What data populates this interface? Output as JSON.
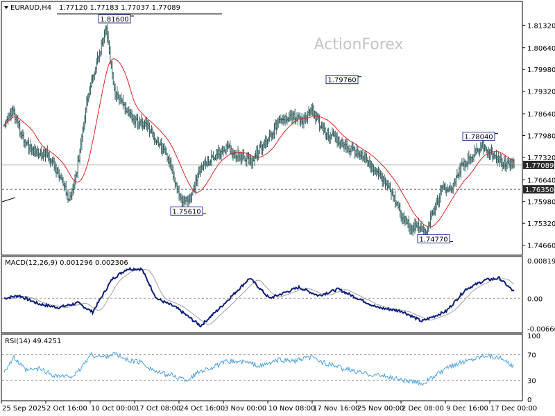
{
  "header": {
    "symbol": "EURAUD,H4",
    "ohlc": "1.77120 1.77183 1.77037 1.77089"
  },
  "watermark": "ActionForex",
  "colors": {
    "price": "#2f5b5b",
    "ma": "#dd2222",
    "macd": "#0a1a7a",
    "signal": "#a0a0a0",
    "rsi": "#4aa0e0",
    "grid": "#c8c8c8",
    "label_bg": "#2b2b2b",
    "axis": "#000000"
  },
  "chart_data": [
    {
      "type": "bar",
      "panel": "price",
      "ylim": [
        1.744,
        1.82
      ],
      "y_ticks": [
        "1.81320",
        "1.80640",
        "1.79980",
        "1.79320",
        "1.78640",
        "1.77980",
        "1.77320",
        "1.76640",
        "1.75980",
        "1.75320",
        "1.74660"
      ],
      "x_ticks": [
        "25 Sep 2025",
        "2 Oct 16:00",
        "10 Oct 00:00",
        "17 Oct 08:00",
        "24 Oct 16:00",
        "3 Nov 00:00",
        "10 Nov 08:00",
        "17 Nov 16:00",
        "25 Nov 00:00",
        "2 Dec 08:00",
        "9 Dec 16:00",
        "17 Dec 00:00"
      ],
      "current_price": "1.77089",
      "line_level": "1.76350",
      "annotations": [
        {
          "label": "1.81600",
          "value": 1.816
        },
        {
          "label": "1.75610",
          "value": 1.7561
        },
        {
          "label": "1.79760",
          "value": 1.7976
        },
        {
          "label": "1.74770",
          "value": 1.7477
        },
        {
          "label": "1.78040",
          "value": 1.7804
        }
      ],
      "close_anchors": [
        [
          0,
          1.782
        ],
        [
          8,
          1.7875
        ],
        [
          18,
          1.7795
        ],
        [
          30,
          1.775
        ],
        [
          45,
          1.774
        ],
        [
          58,
          1.7665
        ],
        [
          66,
          1.76
        ],
        [
          74,
          1.769
        ],
        [
          84,
          1.79
        ],
        [
          95,
          1.803
        ],
        [
          104,
          1.812
        ],
        [
          112,
          1.793
        ],
        [
          124,
          1.788
        ],
        [
          134,
          1.784
        ],
        [
          145,
          1.783
        ],
        [
          158,
          1.777
        ],
        [
          168,
          1.772
        ],
        [
          180,
          1.76
        ],
        [
          190,
          1.761
        ],
        [
          200,
          1.77
        ],
        [
          212,
          1.773
        ],
        [
          226,
          1.776
        ],
        [
          238,
          1.774
        ],
        [
          252,
          1.772
        ],
        [
          266,
          1.778
        ],
        [
          280,
          1.784
        ],
        [
          292,
          1.786
        ],
        [
          304,
          1.784
        ],
        [
          314,
          1.788
        ],
        [
          322,
          1.782
        ],
        [
          336,
          1.779
        ],
        [
          350,
          1.776
        ],
        [
          364,
          1.774
        ],
        [
          378,
          1.769
        ],
        [
          392,
          1.764
        ],
        [
          404,
          1.756
        ],
        [
          414,
          1.752
        ],
        [
          422,
          1.753
        ],
        [
          428,
          1.75
        ],
        [
          436,
          1.756
        ],
        [
          446,
          1.764
        ],
        [
          456,
          1.764
        ],
        [
          466,
          1.771
        ],
        [
          476,
          1.773
        ],
        [
          486,
          1.777
        ],
        [
          496,
          1.774
        ],
        [
          508,
          1.7715
        ],
        [
          518,
          1.7709
        ]
      ]
    },
    {
      "type": "line",
      "panel": "macd",
      "title": "MACD(12,26,9) 0.001296 0.002306",
      "ylim": [
        -0.0072,
        0.0088
      ],
      "y_ticks": [
        "0.008194",
        "0.00",
        "-0.006604"
      ],
      "macd_anchors": [
        [
          0,
          0.0
        ],
        [
          15,
          0.0006
        ],
        [
          35,
          -0.0012
        ],
        [
          55,
          -0.002
        ],
        [
          75,
          -0.001
        ],
        [
          90,
          -0.003
        ],
        [
          110,
          0.0042
        ],
        [
          125,
          0.0064
        ],
        [
          140,
          0.0064
        ],
        [
          155,
          0.0
        ],
        [
          175,
          -0.002
        ],
        [
          200,
          -0.006
        ],
        [
          220,
          -0.002
        ],
        [
          250,
          0.0044
        ],
        [
          270,
          0.0
        ],
        [
          300,
          0.0024
        ],
        [
          320,
          0.0006
        ],
        [
          340,
          0.002
        ],
        [
          360,
          0.0
        ],
        [
          380,
          -0.002
        ],
        [
          405,
          -0.0028
        ],
        [
          425,
          -0.005
        ],
        [
          450,
          -0.0028
        ],
        [
          470,
          0.002
        ],
        [
          490,
          0.004
        ],
        [
          504,
          0.0044
        ],
        [
          520,
          0.0012
        ]
      ],
      "signal_lag": 4
    },
    {
      "type": "line",
      "panel": "rsi",
      "title": "RSI(14) 49.4251",
      "ylim": [
        0,
        100
      ],
      "y_ticks": [
        "100",
        "70",
        "30",
        "0"
      ],
      "levels": [
        70,
        30
      ],
      "rsi_anchors": [
        [
          0,
          45
        ],
        [
          10,
          65
        ],
        [
          22,
          45
        ],
        [
          36,
          48
        ],
        [
          50,
          38
        ],
        [
          64,
          35
        ],
        [
          74,
          40
        ],
        [
          88,
          70
        ],
        [
          100,
          66
        ],
        [
          112,
          72
        ],
        [
          124,
          62
        ],
        [
          140,
          58
        ],
        [
          156,
          42
        ],
        [
          170,
          38
        ],
        [
          186,
          30
        ],
        [
          200,
          45
        ],
        [
          212,
          50
        ],
        [
          228,
          60
        ],
        [
          246,
          58
        ],
        [
          262,
          52
        ],
        [
          280,
          62
        ],
        [
          296,
          60
        ],
        [
          312,
          66
        ],
        [
          330,
          55
        ],
        [
          346,
          48
        ],
        [
          362,
          42
        ],
        [
          380,
          38
        ],
        [
          398,
          33
        ],
        [
          412,
          28
        ],
        [
          426,
          25
        ],
        [
          442,
          40
        ],
        [
          458,
          55
        ],
        [
          474,
          62
        ],
        [
          490,
          70
        ],
        [
          504,
          65
        ],
        [
          520,
          49.4
        ]
      ]
    }
  ]
}
